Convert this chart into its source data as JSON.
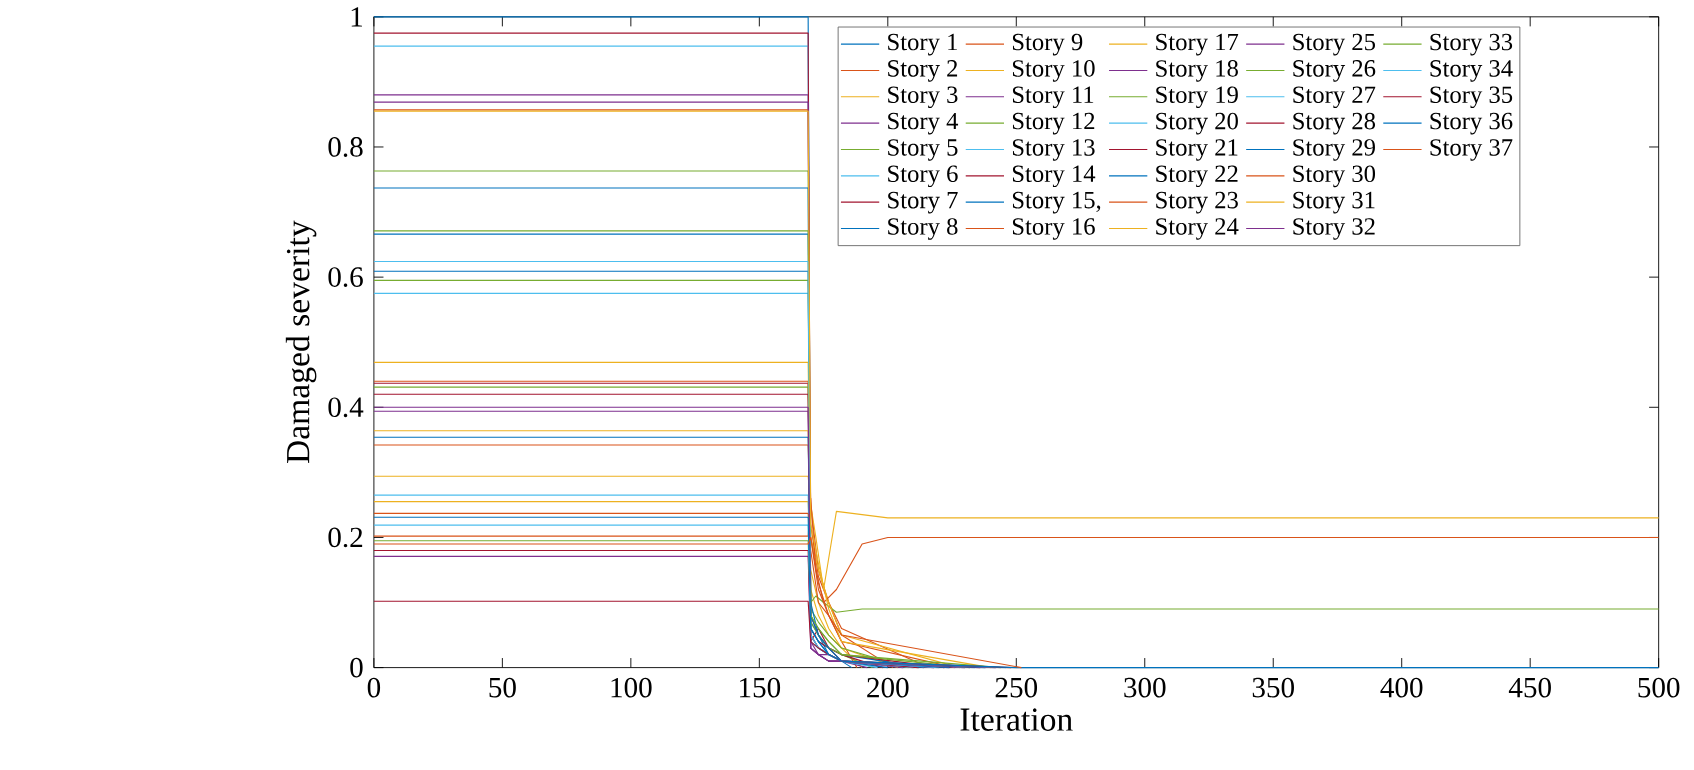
{
  "chart_data": {
    "type": "line",
    "xlabel": "Iteration",
    "ylabel": "Damaged severity",
    "xlim": [
      0,
      500
    ],
    "ylim": [
      0,
      1
    ],
    "xticks": [
      0,
      50,
      100,
      150,
      200,
      250,
      300,
      350,
      400,
      450,
      500
    ],
    "yticks": [
      0,
      0.2,
      0.4,
      0.6,
      0.8,
      1
    ],
    "grid": false,
    "legend": "top right",
    "series": [
      {
        "name": "Story 1",
        "color": "#0072bd",
        "x": [
          0,
          169,
          170,
          173,
          177,
          182,
          186
        ],
        "values": [
          1,
          1,
          0.05,
          0.03,
          0.02,
          0.01,
          0
        ]
      },
      {
        "name": "Story 2",
        "color": "#d95319",
        "x": [
          0,
          169,
          170,
          173,
          177,
          182,
          188
        ],
        "values": [
          0.342,
          0.342,
          0.2,
          0.12,
          0.08,
          0.04,
          0
        ]
      },
      {
        "name": "Story 3",
        "color": "#edb120",
        "x": [
          0,
          169,
          170,
          173,
          177,
          182,
          190
        ],
        "values": [
          0.255,
          0.255,
          0.15,
          0.1,
          0.06,
          0.03,
          0
        ]
      },
      {
        "name": "Story 4",
        "color": "#7e2f8e",
        "x": [
          0,
          169,
          170,
          173,
          177,
          182,
          192
        ],
        "values": [
          0.394,
          0.394,
          0.03,
          0.02,
          0.01,
          0.01,
          0
        ]
      },
      {
        "name": "Story 5",
        "color": "#77ac30",
        "x": [
          0,
          169,
          170,
          173,
          177,
          182,
          194
        ],
        "values": [
          0.763,
          0.763,
          0.08,
          0.06,
          0.04,
          0.02,
          0
        ]
      },
      {
        "name": "Story 6",
        "color": "#4dbeee",
        "x": [
          0,
          169,
          170,
          173,
          177,
          182,
          196
        ],
        "values": [
          0.575,
          0.575,
          0.06,
          0.04,
          0.03,
          0.01,
          0
        ]
      },
      {
        "name": "Story 7",
        "color": "#a2142f",
        "x": [
          0,
          169,
          170,
          173,
          177,
          182,
          198
        ],
        "values": [
          0.437,
          0.437,
          0.04,
          0.06,
          0.03,
          0.02,
          0
        ]
      },
      {
        "name": "Story 8",
        "color": "#0072bd",
        "x": [
          0,
          169,
          170,
          173,
          177,
          182,
          200
        ],
        "values": [
          0.737,
          0.737,
          0.07,
          0.05,
          0.02,
          0.01,
          0
        ]
      },
      {
        "name": "Story 9",
        "color": "#d95319",
        "x": [
          0,
          169,
          170,
          173,
          177,
          182,
          202
        ],
        "values": [
          0.44,
          0.44,
          0.25,
          0.15,
          0.1,
          0.05,
          0
        ]
      },
      {
        "name": "Story 10",
        "color": "#edb120",
        "x": [
          0,
          169,
          170,
          173,
          177,
          182,
          204
        ],
        "values": [
          0.364,
          0.364,
          0.12,
          0.08,
          0.05,
          0.03,
          0
        ]
      },
      {
        "name": "Story 11",
        "color": "#7e2f8e",
        "x": [
          0,
          169,
          170,
          173,
          177,
          182,
          206
        ],
        "values": [
          0.88,
          0.88,
          0.04,
          0.02,
          0.02,
          0.01,
          0
        ]
      },
      {
        "name": "Story 12",
        "color": "#77ac30",
        "x": [
          0,
          169,
          170,
          173,
          177,
          182,
          208
        ],
        "values": [
          0.431,
          0.431,
          0.09,
          0.07,
          0.05,
          0.03,
          0
        ]
      },
      {
        "name": "Story 13",
        "color": "#4dbeee",
        "x": [
          0,
          169,
          170,
          173,
          177,
          182,
          210
        ],
        "values": [
          0.955,
          0.955,
          0.05,
          0.03,
          0.02,
          0.01,
          0
        ]
      },
      {
        "name": "Story 14",
        "color": "#a2142f",
        "x": [
          0,
          169,
          170,
          173,
          177,
          182,
          212
        ],
        "values": [
          0.975,
          0.975,
          0.06,
          0.04,
          0.03,
          0.01,
          0
        ]
      },
      {
        "name": "Story 15,",
        "color": "#0072bd",
        "x": [
          0,
          169,
          170,
          173,
          177,
          182,
          214
        ],
        "values": [
          0.666,
          0.666,
          0.1,
          0.05,
          0.03,
          0.02,
          0
        ]
      },
      {
        "name": "Story 16",
        "color": "#d95319",
        "x": [
          0,
          169,
          170,
          173,
          177,
          182,
          216
        ],
        "values": [
          0.857,
          0.857,
          0.22,
          0.14,
          0.1,
          0.06,
          0
        ]
      },
      {
        "name": "Story 17",
        "color": "#edb120",
        "x": [
          0,
          169,
          170,
          172,
          175,
          180,
          190,
          200,
          220,
          500
        ],
        "values": [
          0.294,
          0.294,
          0.25,
          0.2,
          0.12,
          0.24,
          0.235,
          0.23,
          0.23,
          0.23
        ]
      },
      {
        "name": "Story 18",
        "color": "#7e2f8e",
        "x": [
          0,
          169,
          170,
          173,
          177,
          182,
          218
        ],
        "values": [
          0.869,
          0.869,
          0.03,
          0.02,
          0.01,
          0.01,
          0
        ]
      },
      {
        "name": "Story 19",
        "color": "#77ac30",
        "x": [
          0,
          169,
          170,
          172,
          175,
          180,
          190,
          200,
          220,
          500
        ],
        "values": [
          0.595,
          0.595,
          0.1,
          0.11,
          0.1,
          0.085,
          0.09,
          0.09,
          0.09,
          0.09
        ]
      },
      {
        "name": "Story 20",
        "color": "#4dbeee",
        "x": [
          0,
          169,
          170,
          173,
          177,
          182,
          220
        ],
        "values": [
          0.265,
          0.265,
          0.04,
          0.03,
          0.02,
          0.01,
          0
        ]
      },
      {
        "name": "Story 21",
        "color": "#a2142f",
        "x": [
          0,
          169,
          170,
          173,
          177,
          182,
          222
        ],
        "values": [
          0.42,
          0.42,
          0.08,
          0.05,
          0.03,
          0.02,
          0
        ]
      },
      {
        "name": "Story 22",
        "color": "#0072bd",
        "x": [
          0,
          169,
          170,
          173,
          177,
          182,
          224
        ],
        "values": [
          0.609,
          0.609,
          0.06,
          0.04,
          0.02,
          0.01,
          0
        ]
      },
      {
        "name": "Story 23",
        "color": "#d95319",
        "x": [
          0,
          169,
          170,
          173,
          177,
          182,
          226
        ],
        "values": [
          0.237,
          0.237,
          0.18,
          0.1,
          0.08,
          0.04,
          0
        ]
      },
      {
        "name": "Story 24",
        "color": "#edb120",
        "x": [
          0,
          169,
          170,
          173,
          177,
          182,
          228
        ],
        "values": [
          0.469,
          0.469,
          0.2,
          0.15,
          0.1,
          0.05,
          0
        ]
      },
      {
        "name": "Story 25",
        "color": "#7e2f8e",
        "x": [
          0,
          169,
          170,
          173,
          177,
          182,
          230
        ],
        "values": [
          0.171,
          0.171,
          0.03,
          0.02,
          0.01,
          0.01,
          0
        ]
      },
      {
        "name": "Story 26",
        "color": "#77ac30",
        "x": [
          0,
          169,
          170,
          173,
          177,
          182,
          232
        ],
        "values": [
          0.671,
          0.671,
          0.07,
          0.05,
          0.03,
          0.02,
          0
        ]
      },
      {
        "name": "Story 27",
        "color": "#4dbeee",
        "x": [
          0,
          169,
          170,
          173,
          177,
          182,
          234
        ],
        "values": [
          0.624,
          0.624,
          0.05,
          0.03,
          0.02,
          0.01,
          0
        ]
      },
      {
        "name": "Story 28",
        "color": "#a2142f",
        "x": [
          0,
          169,
          170,
          173,
          177,
          182,
          236
        ],
        "values": [
          0.18,
          0.18,
          0.05,
          0.03,
          0.02,
          0.01,
          0
        ]
      },
      {
        "name": "Story 29",
        "color": "#0072bd",
        "x": [
          0,
          169,
          170,
          173,
          177,
          182,
          238
        ],
        "values": [
          0.354,
          0.354,
          0.08,
          0.05,
          0.03,
          0.01,
          0
        ]
      },
      {
        "name": "Story 30",
        "color": "#d95319",
        "x": [
          0,
          169,
          170,
          172,
          175,
          180,
          190,
          200,
          220,
          500
        ],
        "values": [
          0.202,
          0.202,
          0.26,
          0.15,
          0.1,
          0.12,
          0.19,
          0.2,
          0.2,
          0.2
        ]
      },
      {
        "name": "Story 31",
        "color": "#edb120",
        "x": [
          0,
          169,
          170,
          173,
          177,
          182,
          240
        ],
        "values": [
          0.855,
          0.855,
          0.22,
          0.16,
          0.09,
          0.04,
          0
        ]
      },
      {
        "name": "Story 32",
        "color": "#7e2f8e",
        "x": [
          0,
          169,
          170,
          173,
          177,
          182,
          242
        ],
        "values": [
          0.4,
          0.4,
          0.03,
          0.02,
          0.01,
          0.01,
          0
        ]
      },
      {
        "name": "Story 33",
        "color": "#77ac30",
        "x": [
          0,
          169,
          170,
          173,
          177,
          182,
          244
        ],
        "values": [
          0.195,
          0.195,
          0.08,
          0.06,
          0.04,
          0.02,
          0
        ]
      },
      {
        "name": "Story 34",
        "color": "#4dbeee",
        "x": [
          0,
          169,
          170,
          173,
          177,
          182,
          246
        ],
        "values": [
          0.219,
          0.219,
          0.05,
          0.03,
          0.02,
          0.01,
          0
        ]
      },
      {
        "name": "Story 35",
        "color": "#a2142f",
        "x": [
          0,
          169,
          170,
          173,
          177,
          182,
          248
        ],
        "values": [
          0.102,
          0.102,
          0.04,
          0.03,
          0.02,
          0.01,
          0
        ]
      },
      {
        "name": "Story 36",
        "color": "#0072bd",
        "x": [
          0,
          169,
          170,
          173,
          177,
          182,
          250,
          500
        ],
        "values": [
          0.231,
          0.231,
          0.06,
          0.04,
          0.02,
          0.01,
          0,
          0
        ]
      },
      {
        "name": "Story 37",
        "color": "#d95319",
        "x": [
          0,
          169,
          170,
          173,
          177,
          182,
          252
        ],
        "values": [
          0.19,
          0.19,
          0.2,
          0.13,
          0.08,
          0.05,
          0
        ]
      }
    ]
  }
}
